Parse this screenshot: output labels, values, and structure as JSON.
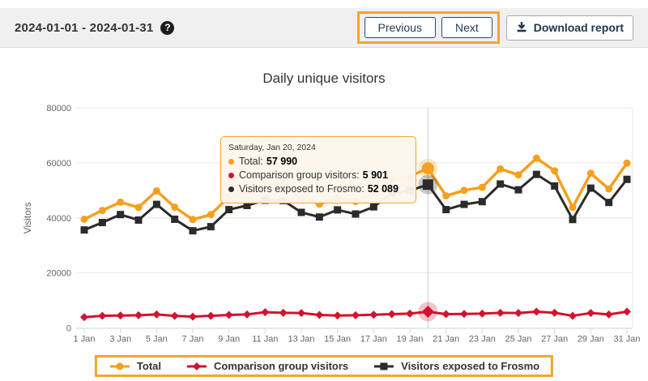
{
  "header": {
    "date_range": "2024-01-01 - 2024-01-31",
    "help_glyph": "?",
    "previous_label": "Previous",
    "next_label": "Next",
    "download_label": "Download report"
  },
  "colors": {
    "highlight": "#F5A529",
    "header_bg": "#f0f0f1",
    "nav_button_text": "#1F3B57",
    "download_text": "#24364B",
    "grid": "#E6E6E6",
    "axis_line": "#CCD6EB",
    "crosshair": "#CCCCCC",
    "axis_text": "#666666"
  },
  "chart_data": {
    "type": "line",
    "title": "Daily unique visitors",
    "xlabel": "",
    "ylabel": "Visitors",
    "ylim": [
      0,
      80000
    ],
    "yticks": [
      0,
      20000,
      40000,
      60000,
      80000
    ],
    "ytick_labels": [
      "0",
      "20000",
      "40000",
      "60000",
      "80000"
    ],
    "x": [
      1,
      2,
      3,
      4,
      5,
      6,
      7,
      8,
      9,
      10,
      11,
      12,
      13,
      14,
      15,
      16,
      17,
      18,
      19,
      20,
      21,
      22,
      23,
      24,
      25,
      26,
      27,
      28,
      29,
      30,
      31
    ],
    "x_tick_days": [
      1,
      3,
      5,
      7,
      9,
      11,
      13,
      15,
      17,
      19,
      21,
      23,
      25,
      27,
      29,
      31
    ],
    "x_tick_labels": [
      "1 Jan",
      "3 Jan",
      "5 Jan",
      "7 Jan",
      "9 Jan",
      "11 Jan",
      "13 Jan",
      "15 Jan",
      "17 Jan",
      "19 Jan",
      "21 Jan",
      "23 Jan",
      "25 Jan",
      "27 Jan",
      "29 Jan",
      "31 Jan"
    ],
    "grid": "horizontal",
    "legend_position": "bottom",
    "hover_day": 20,
    "series": [
      {
        "name": "Total",
        "color": "#F5A01E",
        "marker": "circle",
        "line_width": 3.5,
        "marker_size": 4.5,
        "hover_size": 7.5,
        "values": [
          39500,
          42700,
          45700,
          43800,
          49800,
          43900,
          39400,
          41200,
          47700,
          49400,
          52100,
          51800,
          47400,
          45000,
          47400,
          46000,
          48800,
          54000,
          55100,
          57990,
          48000,
          50000,
          51100,
          57800,
          55600,
          61700,
          57100,
          43800,
          56200,
          50500,
          59900
        ]
      },
      {
        "name": "Comparison group visitors",
        "color": "#D2122E",
        "marker": "diamond",
        "line_width": 3,
        "marker_size": 4,
        "hover_size": 6.5,
        "values": [
          3900,
          4400,
          4500,
          4600,
          4900,
          4400,
          4100,
          4400,
          4700,
          4900,
          5700,
          5500,
          5400,
          4700,
          4500,
          4600,
          4800,
          5000,
          5200,
          5901,
          5000,
          5100,
          5200,
          5500,
          5400,
          5900,
          5500,
          4400,
          5400,
          4900,
          5900
        ]
      },
      {
        "name": "Visitors exposed to Frosmo",
        "color": "#2B2B2B",
        "marker": "square",
        "line_width": 3,
        "marker_size": 4.5,
        "hover_size": 6.5,
        "values": [
          35600,
          38300,
          41200,
          39200,
          44900,
          39500,
          35300,
          36800,
          43000,
          44500,
          46400,
          46300,
          42000,
          40300,
          42900,
          41400,
          44000,
          49000,
          49900,
          52089,
          43000,
          44900,
          45900,
          52300,
          50200,
          55800,
          51600,
          39400,
          50800,
          45600,
          54000
        ]
      }
    ]
  },
  "tooltip": {
    "date": "Saturday, Jan 20, 2024",
    "rows": [
      {
        "label": "Total:",
        "value": "57 990",
        "color": "#F5A01E"
      },
      {
        "label": "Comparison group visitors:",
        "value": "5 901",
        "color": "#D2122E"
      },
      {
        "label": "Visitors exposed to Frosmo:",
        "value": "52 089",
        "color": "#2B2B2B"
      }
    ]
  }
}
